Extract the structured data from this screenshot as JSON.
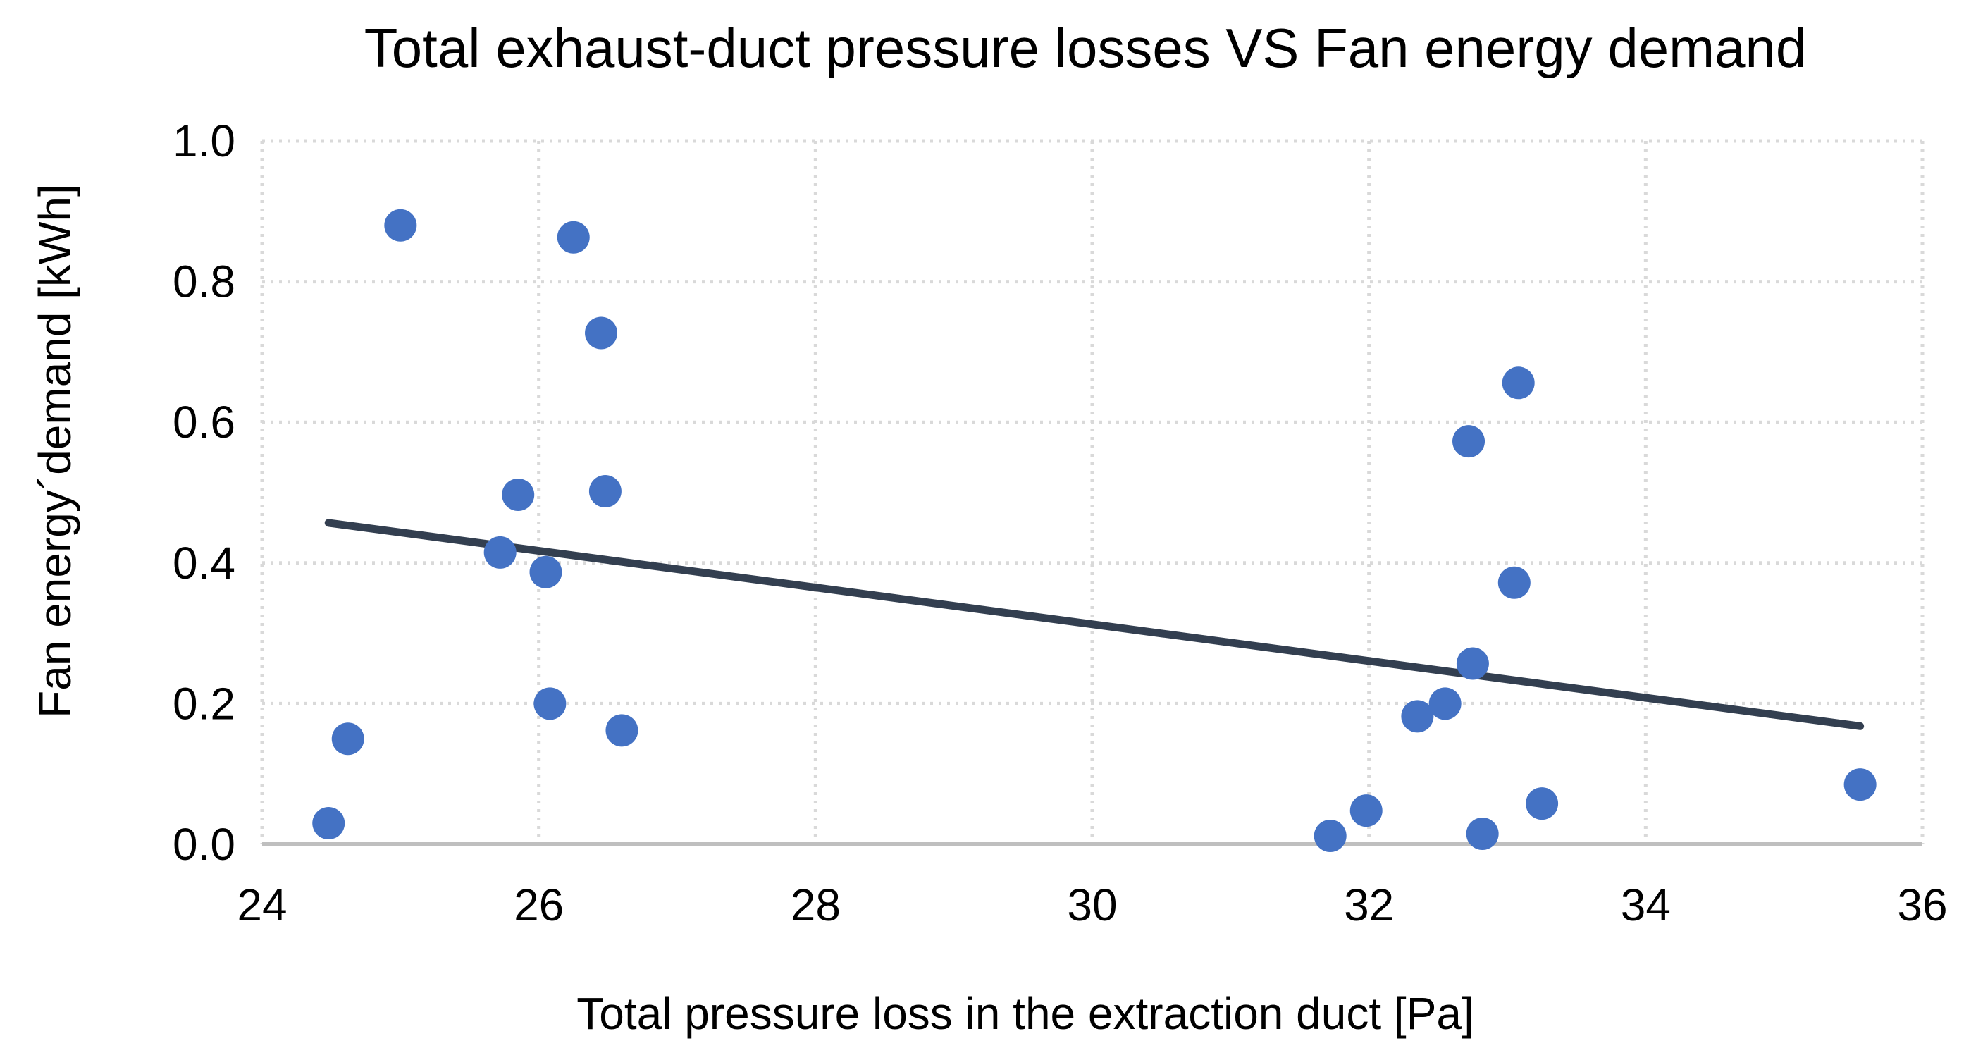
{
  "chart_data": {
    "type": "scatter",
    "title": "Total exhaust-duct pressure losses VS Fan energy demand",
    "xlabel": "Total pressure loss in the extraction duct [Pa]",
    "ylabel": "Fan energy´demand [kWh]",
    "xlim": [
      24,
      36
    ],
    "ylim": [
      0,
      1
    ],
    "x_ticks": [
      {
        "value": 24,
        "label": "24"
      },
      {
        "value": 26,
        "label": "26"
      },
      {
        "value": 28,
        "label": "28"
      },
      {
        "value": 30,
        "label": "30"
      },
      {
        "value": 32,
        "label": "32"
      },
      {
        "value": 34,
        "label": "34"
      },
      {
        "value": 36,
        "label": "36"
      }
    ],
    "y_ticks": [
      {
        "value": 0.0,
        "label": "0.0"
      },
      {
        "value": 0.2,
        "label": "0.2"
      },
      {
        "value": 0.4,
        "label": "0.4"
      },
      {
        "value": 0.6,
        "label": "0.6"
      },
      {
        "value": 0.8,
        "label": "0.8"
      },
      {
        "value": 1.0,
        "label": "1.0"
      }
    ],
    "grid": true,
    "series": [
      {
        "name": "Fan energy demand",
        "color": "#4472c4",
        "points": [
          {
            "x": 24.48,
            "y": 0.03
          },
          {
            "x": 24.62,
            "y": 0.15
          },
          {
            "x": 25.0,
            "y": 0.88
          },
          {
            "x": 25.72,
            "y": 0.415
          },
          {
            "x": 25.85,
            "y": 0.497
          },
          {
            "x": 26.05,
            "y": 0.387
          },
          {
            "x": 26.08,
            "y": 0.2
          },
          {
            "x": 26.25,
            "y": 0.863
          },
          {
            "x": 26.45,
            "y": 0.727
          },
          {
            "x": 26.48,
            "y": 0.502
          },
          {
            "x": 26.6,
            "y": 0.162
          },
          {
            "x": 31.72,
            "y": 0.012
          },
          {
            "x": 31.98,
            "y": 0.048
          },
          {
            "x": 32.35,
            "y": 0.182
          },
          {
            "x": 32.55,
            "y": 0.2
          },
          {
            "x": 32.72,
            "y": 0.573
          },
          {
            "x": 32.75,
            "y": 0.257
          },
          {
            "x": 32.82,
            "y": 0.015
          },
          {
            "x": 33.05,
            "y": 0.372
          },
          {
            "x": 33.08,
            "y": 0.656
          },
          {
            "x": 33.25,
            "y": 0.058
          },
          {
            "x": 35.55,
            "y": 0.085
          }
        ]
      }
    ],
    "trendline": {
      "type": "linear",
      "color": "#333f50",
      "x_start": 24.48,
      "y_start": 0.457,
      "x_end": 35.55,
      "y_end": 0.168
    }
  }
}
